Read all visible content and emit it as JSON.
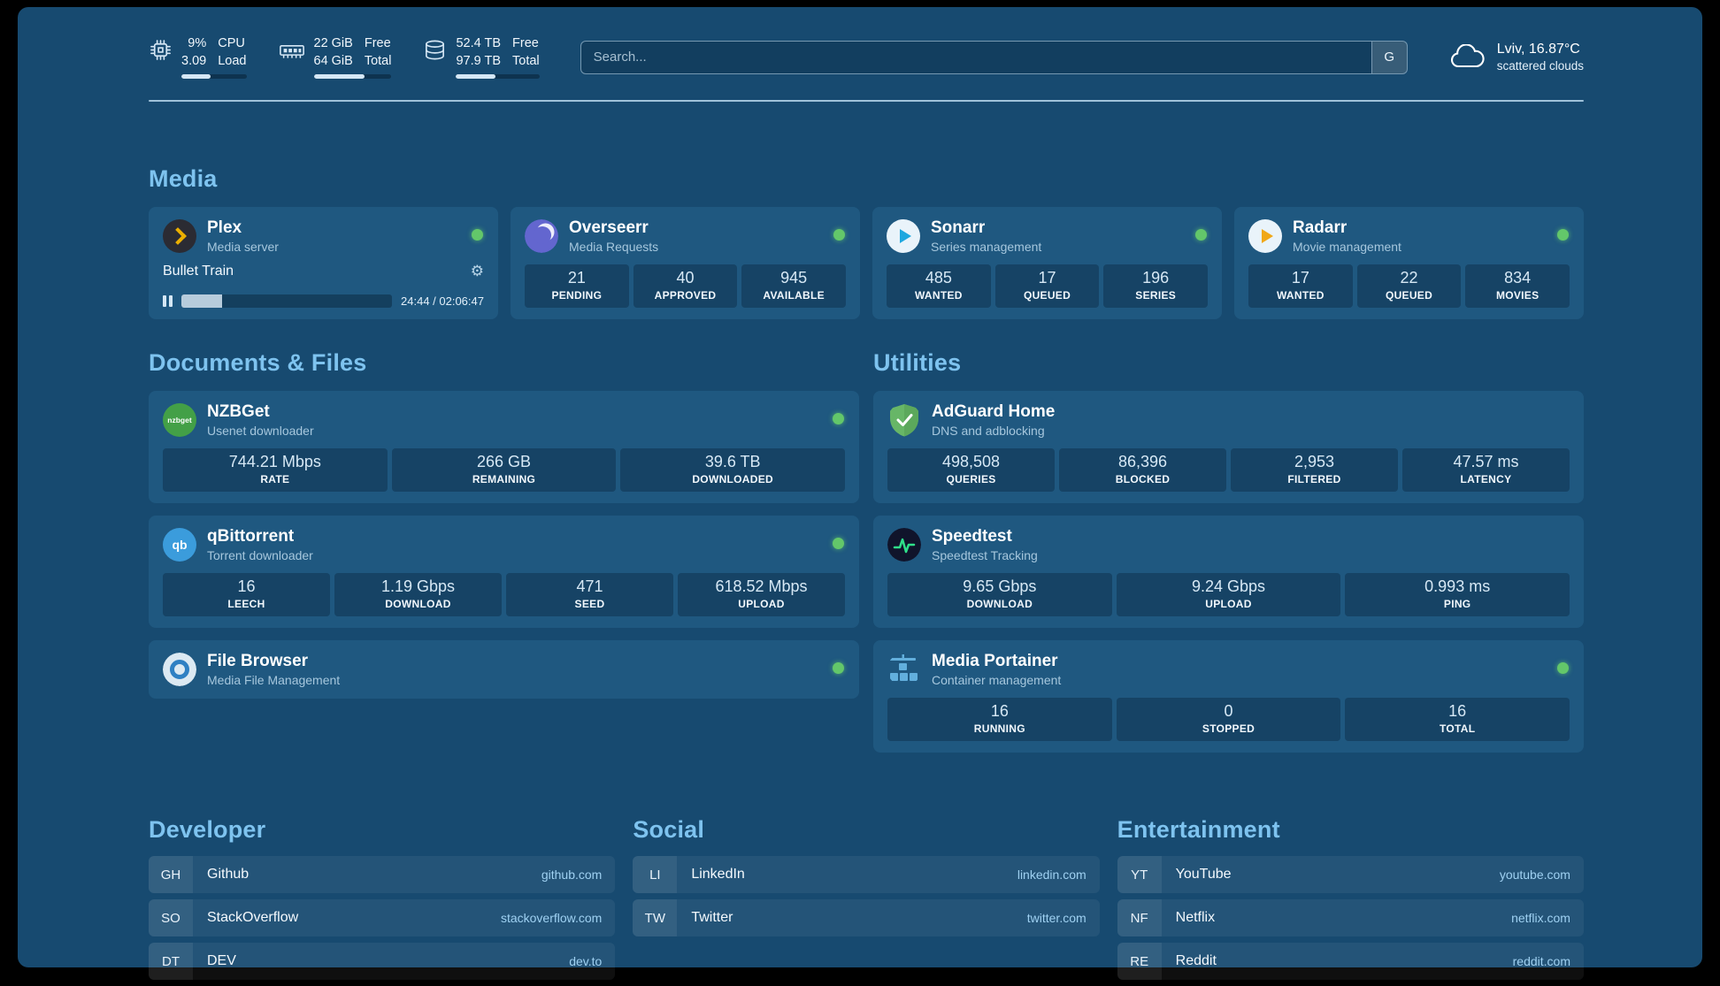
{
  "colors": {
    "background": "#174A70",
    "card": "#1F5880",
    "heading": "#7EC3EF",
    "status_online": "#63C76A",
    "link": "#9FD1F2"
  },
  "topbar": {
    "metrics": [
      {
        "name": "cpu",
        "values": [
          "9%",
          "3.09"
        ],
        "labels": [
          "CPU",
          "Load"
        ],
        "progress_pct": 45
      },
      {
        "name": "memory",
        "values": [
          "22 GiB",
          "64 GiB"
        ],
        "labels": [
          "Free",
          "Total"
        ],
        "progress_pct": 65
      },
      {
        "name": "storage",
        "values": [
          "52.4 TB",
          "97.9 TB"
        ],
        "labels": [
          "Free",
          "Total"
        ],
        "progress_pct": 47
      }
    ],
    "search": {
      "placeholder": "Search...",
      "engine_button": "G"
    },
    "weather": {
      "location": "Lviv, 16.87°C",
      "condition": "scattered clouds"
    }
  },
  "media": {
    "title": "Media",
    "plex": {
      "name": "Plex",
      "subtitle": "Media server",
      "online": true,
      "now_playing": "Bullet Train",
      "time": "24:44 / 02:06:47",
      "progress_pct": 19.5
    },
    "overseerr": {
      "name": "Overseerr",
      "subtitle": "Media Requests",
      "online": true,
      "stats": [
        {
          "value": "21",
          "label": "PENDING"
        },
        {
          "value": "40",
          "label": "APPROVED"
        },
        {
          "value": "945",
          "label": "AVAILABLE"
        }
      ]
    },
    "sonarr": {
      "name": "Sonarr",
      "subtitle": "Series management",
      "online": true,
      "stats": [
        {
          "value": "485",
          "label": "WANTED"
        },
        {
          "value": "17",
          "label": "QUEUED"
        },
        {
          "value": "196",
          "label": "SERIES"
        }
      ]
    },
    "radarr": {
      "name": "Radarr",
      "subtitle": "Movie management",
      "online": true,
      "stats": [
        {
          "value": "17",
          "label": "WANTED"
        },
        {
          "value": "22",
          "label": "QUEUED"
        },
        {
          "value": "834",
          "label": "MOVIES"
        }
      ]
    }
  },
  "documents": {
    "title": "Documents & Files",
    "nzbget": {
      "name": "NZBGet",
      "subtitle": "Usenet downloader",
      "online": true,
      "logo_text": "nzbget",
      "stats": [
        {
          "value": "744.21 Mbps",
          "label": "RATE"
        },
        {
          "value": "266 GB",
          "label": "REMAINING"
        },
        {
          "value": "39.6 TB",
          "label": "DOWNLOADED"
        }
      ]
    },
    "qbittorrent": {
      "name": "qBittorrent",
      "subtitle": "Torrent downloader",
      "online": true,
      "logo_text": "qb",
      "stats": [
        {
          "value": "16",
          "label": "LEECH"
        },
        {
          "value": "1.19 Gbps",
          "label": "DOWNLOAD"
        },
        {
          "value": "471",
          "label": "SEED"
        },
        {
          "value": "618.52 Mbps",
          "label": "UPLOAD"
        }
      ]
    },
    "filebrowser": {
      "name": "File Browser",
      "subtitle": "Media File Management",
      "online": true
    }
  },
  "utilities": {
    "title": "Utilities",
    "adguard": {
      "name": "AdGuard Home",
      "subtitle": "DNS and adblocking",
      "stats": [
        {
          "value": "498,508",
          "label": "QUERIES"
        },
        {
          "value": "86,396",
          "label": "BLOCKED"
        },
        {
          "value": "2,953",
          "label": "FILTERED"
        },
        {
          "value": "47.57 ms",
          "label": "LATENCY"
        }
      ]
    },
    "speedtest": {
      "name": "Speedtest",
      "subtitle": "Speedtest Tracking",
      "stats": [
        {
          "value": "9.65 Gbps",
          "label": "DOWNLOAD"
        },
        {
          "value": "9.24 Gbps",
          "label": "UPLOAD"
        },
        {
          "value": "0.993 ms",
          "label": "PING"
        }
      ]
    },
    "portainer": {
      "name": "Media Portainer",
      "subtitle": "Container management",
      "online": true,
      "stats": [
        {
          "value": "16",
          "label": "RUNNING"
        },
        {
          "value": "0",
          "label": "STOPPED"
        },
        {
          "value": "16",
          "label": "TOTAL"
        }
      ]
    }
  },
  "bookmarks": [
    {
      "title": "Developer",
      "items": [
        {
          "abbr": "GH",
          "name": "Github",
          "url": "github.com"
        },
        {
          "abbr": "SO",
          "name": "StackOverflow",
          "url": "stackoverflow.com"
        },
        {
          "abbr": "DT",
          "name": "DEV",
          "url": "dev.to"
        }
      ]
    },
    {
      "title": "Social",
      "items": [
        {
          "abbr": "LI",
          "name": "LinkedIn",
          "url": "linkedin.com"
        },
        {
          "abbr": "TW",
          "name": "Twitter",
          "url": "twitter.com"
        }
      ]
    },
    {
      "title": "Entertainment",
      "items": [
        {
          "abbr": "YT",
          "name": "YouTube",
          "url": "youtube.com"
        },
        {
          "abbr": "NF",
          "name": "Netflix",
          "url": "netflix.com"
        },
        {
          "abbr": "RE",
          "name": "Reddit",
          "url": "reddit.com"
        }
      ]
    }
  ]
}
